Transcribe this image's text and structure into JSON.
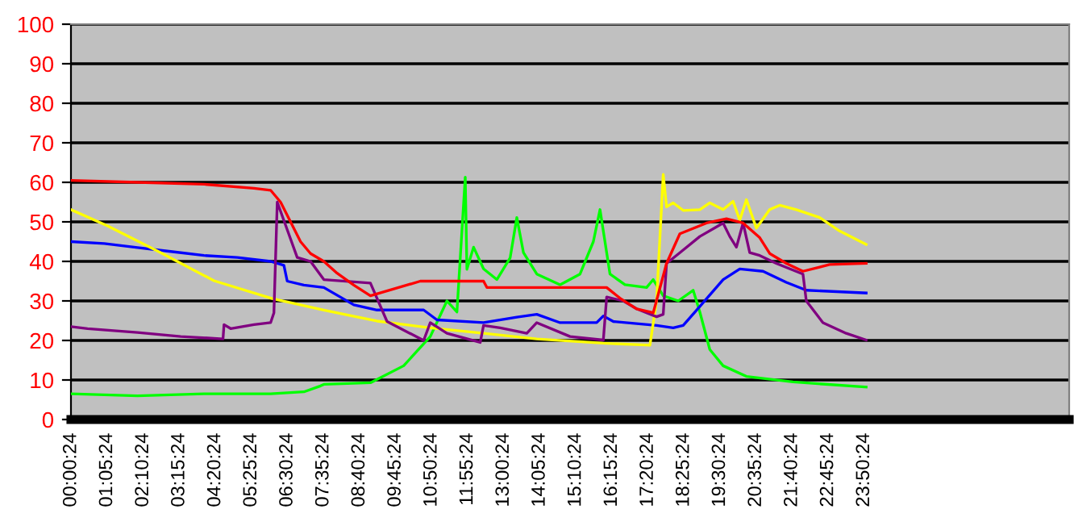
{
  "chart_data": {
    "type": "line",
    "xlim": [
      0,
      30
    ],
    "ylim": [
      0,
      100
    ],
    "yticks": [
      0,
      10,
      20,
      30,
      40,
      50,
      60,
      70,
      80,
      90,
      100
    ],
    "xticks": [
      {
        "value": 0.0067,
        "label": "00:00:24"
      },
      {
        "value": 1.09,
        "label": "01:05:24"
      },
      {
        "value": 2.1733,
        "label": "02:10:24"
      },
      {
        "value": 3.2567,
        "label": "03:15:24"
      },
      {
        "value": 4.34,
        "label": "04:20:24"
      },
      {
        "value": 5.4233,
        "label": "05:25:24"
      },
      {
        "value": 6.5067,
        "label": "06:30:24"
      },
      {
        "value": 7.59,
        "label": "07:35:24"
      },
      {
        "value": 8.6733,
        "label": "08:40:24"
      },
      {
        "value": 9.7567,
        "label": "09:45:24"
      },
      {
        "value": 10.84,
        "label": "10:50:24"
      },
      {
        "value": 11.9233,
        "label": "11:55:24"
      },
      {
        "value": 13.0067,
        "label": "13:00:24"
      },
      {
        "value": 14.09,
        "label": "14:05:24"
      },
      {
        "value": 15.1733,
        "label": "15:10:24"
      },
      {
        "value": 16.2567,
        "label": "16:15:24"
      },
      {
        "value": 17.34,
        "label": "17:20:24"
      },
      {
        "value": 18.4233,
        "label": "18:25:24"
      },
      {
        "value": 19.5067,
        "label": "19:30:24"
      },
      {
        "value": 20.59,
        "label": "20:35:24"
      },
      {
        "value": 21.6733,
        "label": "21:40:24"
      },
      {
        "value": 22.7567,
        "label": "22:45:24"
      },
      {
        "value": 23.84,
        "label": "23:50:24"
      }
    ],
    "grid": "y",
    "legend": false,
    "marker": "none",
    "line_style": "solid",
    "series": [
      {
        "color": "#00ff00",
        "x": [
          0,
          2,
          4,
          6,
          7,
          7.5,
          7.6,
          9.0,
          10.0,
          10.8,
          11.3,
          11.6,
          11.85,
          11.9,
          12.1,
          12.4,
          12.8,
          13.2,
          13.4,
          13.6,
          14.0,
          14.7,
          15.3,
          15.7,
          15.9,
          16.2,
          16.65,
          17.3,
          17.5,
          17.8,
          18.25,
          18.7,
          18.9,
          19.2,
          19.6,
          20.3,
          21.7,
          23.9
        ],
        "values": [
          6.5,
          6,
          6.5,
          6.5,
          7,
          8.5,
          8.9,
          9.3,
          13.6,
          21,
          30,
          27.2,
          61.3,
          38,
          43.6,
          38.1,
          35.4,
          40.9,
          51.1,
          42.2,
          36.8,
          34.1,
          36.8,
          45,
          53.1,
          36.8,
          34.1,
          33.4,
          35.4,
          31.3,
          30,
          32.7,
          27.2,
          17.7,
          13.6,
          10.9,
          9.5,
          8.2
        ]
      },
      {
        "color": "#0000ff",
        "x": [
          0,
          1,
          2,
          3,
          4,
          5,
          6,
          6.4,
          6.5,
          7,
          7.6,
          8.5,
          9.2,
          10.6,
          11.0,
          12.4,
          13.4,
          14.0,
          14.7,
          15.8,
          16.0,
          16.3,
          17.6,
          18.1,
          18.4,
          18.9,
          19.6,
          20.1,
          20.8,
          21.5,
          22.1,
          23.9
        ],
        "values": [
          45,
          44.5,
          43.5,
          42.5,
          41.5,
          41,
          40,
          39,
          35,
          34,
          33.4,
          29,
          27.7,
          27.7,
          25.2,
          24.5,
          25.9,
          26.6,
          24.5,
          24.5,
          26.2,
          24.8,
          23.8,
          23.2,
          23.8,
          28.6,
          35.4,
          38.1,
          37.5,
          34.7,
          32.7,
          32
        ]
      },
      {
        "color": "#ffff00",
        "x": [
          0,
          1.1,
          2.7,
          4.3,
          6.05,
          7.6,
          8.45,
          9.2,
          10.8,
          12.4,
          14.0,
          16.0,
          17.4,
          17.6,
          17.8,
          17.9,
          18.1,
          18.4,
          18.9,
          19.2,
          19.6,
          19.9,
          20.1,
          20.3,
          20.6,
          21.0,
          21.3,
          21.8,
          22.5,
          23.1,
          23.9
        ],
        "values": [
          53.1,
          49,
          42.2,
          35.1,
          30.6,
          27.7,
          26.2,
          24.9,
          23.2,
          21.8,
          20.4,
          19.3,
          18.8,
          30,
          62,
          53.8,
          54.8,
          52.9,
          53.1,
          54.8,
          53.1,
          55.2,
          50.4,
          55.6,
          48.4,
          53.1,
          54.2,
          53.1,
          51.1,
          47.7,
          44.3
        ]
      },
      {
        "color": "#800080",
        "x": [
          0,
          0.5,
          2,
          3.3,
          4.57,
          4.6,
          4.8,
          5.5,
          6.0,
          6.1,
          6.2,
          6.5,
          6.8,
          7.2,
          7.6,
          9.0,
          9.5,
          10.6,
          10.8,
          11.3,
          12.3,
          12.4,
          12.9,
          13.7,
          14.0,
          15.0,
          16.0,
          16.1,
          16.6,
          17.0,
          17.6,
          17.8,
          17.9,
          18.3,
          18.9,
          19.6,
          19.8,
          20.0,
          20.2,
          20.4,
          20.7,
          21.2,
          22.0,
          22.1,
          22.6,
          23.3,
          23.9
        ],
        "values": [
          23.5,
          23,
          22,
          21,
          20.4,
          24,
          23,
          24,
          24.5,
          27,
          55,
          48,
          41,
          40,
          35.4,
          34.5,
          24.8,
          20,
          24.5,
          21.8,
          19.5,
          23.8,
          23.2,
          21.8,
          24.5,
          21,
          20.1,
          31,
          30,
          28,
          26,
          26.6,
          39.5,
          42.2,
          46.3,
          49.7,
          46.3,
          43.6,
          49.7,
          42.2,
          41.5,
          39.5,
          36.8,
          30,
          24.5,
          21.8,
          20.1
        ]
      },
      {
        "color": "#ff0000",
        "x": [
          0,
          2,
          4,
          5.5,
          6.0,
          6.3,
          6.6,
          6.9,
          7.2,
          7.6,
          8.0,
          8.5,
          9.0,
          10.5,
          12.4,
          12.5,
          16.1,
          16.5,
          17.0,
          17.5,
          17.9,
          18.3,
          19.1,
          19.7,
          20.2,
          20.7,
          21.0,
          21.5,
          22.0,
          22.8,
          23.9
        ],
        "values": [
          60.5,
          60,
          59.5,
          58.5,
          58,
          55,
          50,
          45,
          42,
          40,
          37,
          34,
          31.3,
          35,
          35,
          33.4,
          33.4,
          30.7,
          28,
          27,
          39.5,
          47,
          49.7,
          50.8,
          49.7,
          46,
          42,
          39.5,
          37.5,
          39.2,
          39.5
        ]
      }
    ]
  }
}
